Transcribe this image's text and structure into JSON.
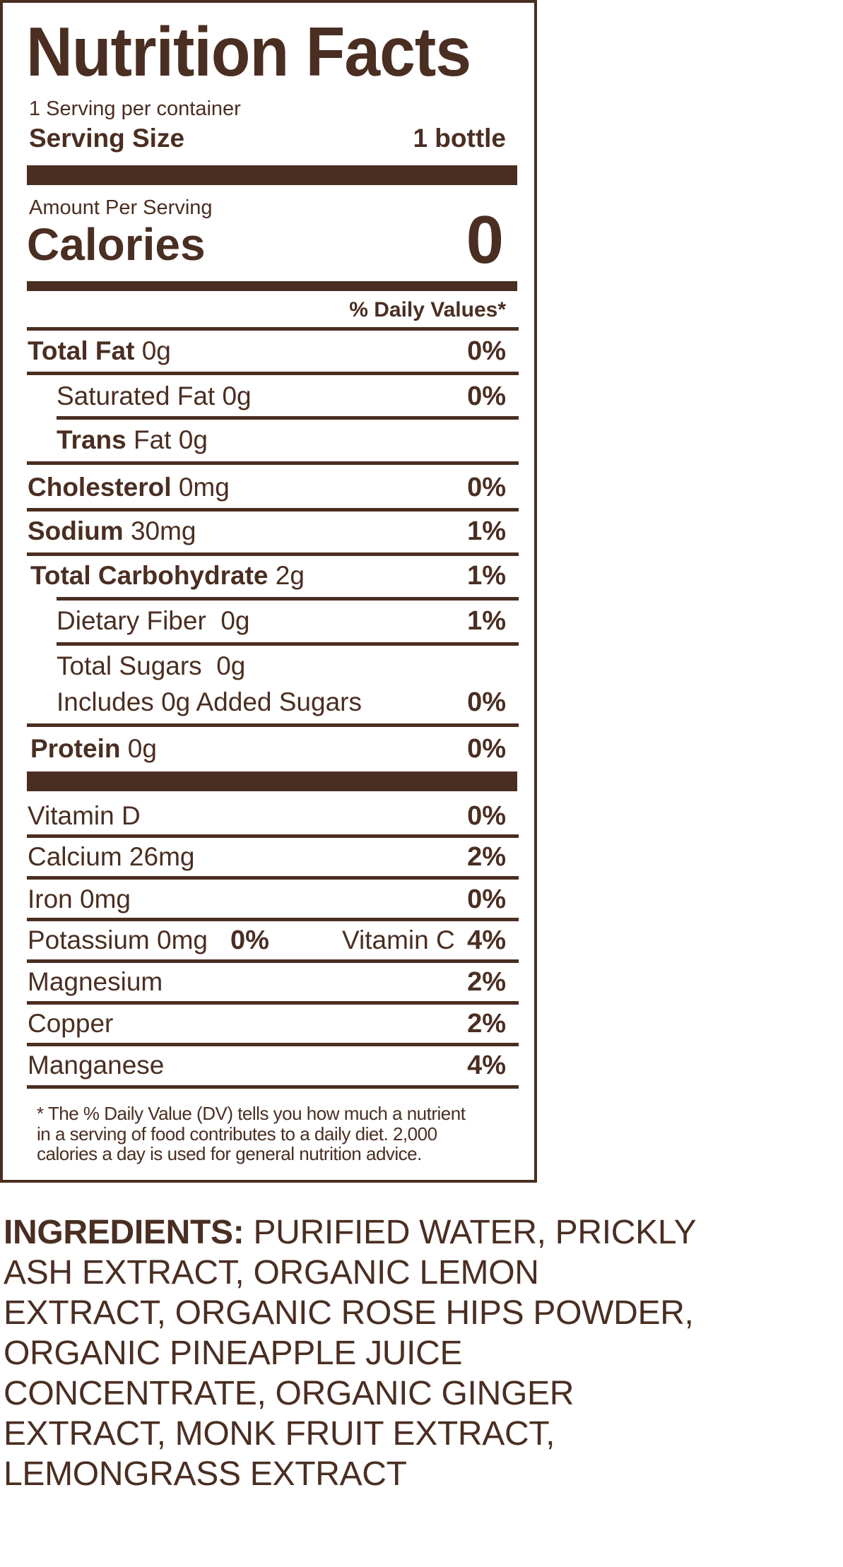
{
  "label": {
    "title": "Nutrition Facts",
    "servings_per_container": "1 Serving per container",
    "serving_size_label": "Serving Size",
    "serving_size_value": "1 bottle",
    "amount_per_serving": "Amount Per Serving",
    "calories_label": "Calories",
    "calories_value": "0",
    "daily_values_header": "% Daily Values*",
    "nutrients": [
      {
        "name": "Total Fat",
        "amount": "0g",
        "dv": "0%"
      },
      {
        "name": "Saturated Fat 0g",
        "amount": "",
        "dv": "0%"
      },
      {
        "name": "Trans",
        "amount": "Fat 0g",
        "dv": ""
      },
      {
        "name": "Cholesterol",
        "amount": "0mg",
        "dv": "0%"
      },
      {
        "name": "Sodium",
        "amount": "30mg",
        "dv": "1%"
      },
      {
        "name": "Total Carbohydrate",
        "amount": "2g",
        "dv": "1%"
      },
      {
        "name": "Dietary Fiber  0g",
        "amount": "",
        "dv": "1%"
      },
      {
        "name": "Total Sugars  0g",
        "amount": "",
        "dv": ""
      },
      {
        "name": "Includes 0g Added Sugars",
        "amount": "",
        "dv": "0%"
      },
      {
        "name": "Protein",
        "amount": "0g",
        "dv": "0%"
      }
    ],
    "vitamins": [
      {
        "name": "Vitamin D",
        "dv": "0%"
      },
      {
        "name": "Calcium 26mg",
        "dv": "2%"
      },
      {
        "name": "Iron 0mg",
        "dv": "0%"
      },
      {
        "name": "Potassium 0mg",
        "dv": "0%",
        "name2": "Vitamin C",
        "dv2": "4%"
      },
      {
        "name": "Magnesium",
        "dv": "2%"
      },
      {
        "name": "Copper",
        "dv": "2%"
      },
      {
        "name": "Manganese",
        "dv": "4%"
      }
    ],
    "footnote": "* The % Daily Value (DV) tells you how much a nutrient in a serving of food contributes to a daily diet. 2,000 calories a day is used for general nutrition advice."
  },
  "ingredients": {
    "label": "INGREDIENTS:",
    "text": " PURIFIED WATER, PRICKLY ASH EXTRACT, ORGANIC LEMON EXTRACT, ORGANIC ROSE HIPS POWDER, ORGANIC PINEAPPLE JUICE CONCENTRATE, ORGANIC GINGER EXTRACT, MONK FRUIT EXTRACT, LEMONGRASS EXTRACT"
  },
  "colors": {
    "ink": "#4a2e22",
    "background": "#ffffff"
  }
}
